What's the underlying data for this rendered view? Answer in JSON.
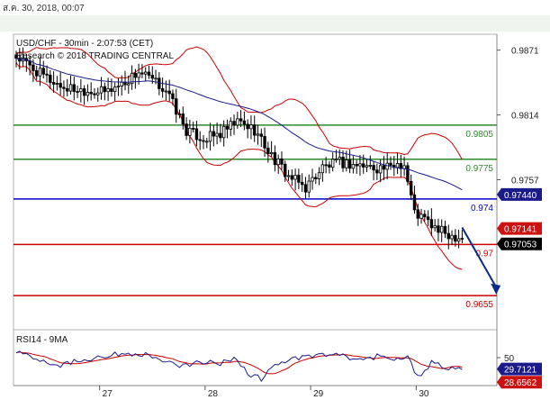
{
  "timestamp": "ส.ค. 30, 2018, 00:07",
  "chart_data": [
    {
      "type": "candlestick",
      "title": "USD/CHF - 30min - 2:07:53 (CET)",
      "subtitle": "Research © 2018 TRADING CENTRAL",
      "ylim": [
        0.9625,
        0.9885
      ],
      "y_ticks": [
        "0.9871",
        "0.9814",
        "0.9757"
      ],
      "x_ticks": [
        "27",
        "28",
        "29",
        "30"
      ],
      "levels": [
        {
          "label": "0.9805",
          "value": 0.9805,
          "color": "#2e8b2e"
        },
        {
          "label": "0.9775",
          "value": 0.9775,
          "color": "#2e8b2e"
        },
        {
          "label": "0.974",
          "value": 0.974,
          "color": "#0000cc"
        },
        {
          "label": "0.97",
          "value": 0.97,
          "color": "#cc0000"
        },
        {
          "label": "0.9655",
          "value": 0.9655,
          "color": "#cc0000"
        }
      ],
      "price_tags": [
        {
          "label": "0.97440",
          "value": 0.9744,
          "color": "#1a1a8a"
        },
        {
          "label": "0.97141",
          "value": 0.97141,
          "color": "#cc1111"
        },
        {
          "label": "0.97053",
          "value": 0.97053,
          "color": "#000000"
        }
      ],
      "close_anchors": [
        [
          0,
          0.9865
        ],
        [
          8,
          0.9848
        ],
        [
          14,
          0.9838
        ],
        [
          20,
          0.9836
        ],
        [
          26,
          0.9834
        ],
        [
          32,
          0.9843
        ],
        [
          36,
          0.9852
        ],
        [
          40,
          0.9844
        ],
        [
          44,
          0.9836
        ],
        [
          50,
          0.98
        ],
        [
          55,
          0.9793
        ],
        [
          60,
          0.9797
        ],
        [
          65,
          0.9808
        ],
        [
          70,
          0.9801
        ],
        [
          75,
          0.9778
        ],
        [
          80,
          0.976
        ],
        [
          85,
          0.975
        ],
        [
          90,
          0.9768
        ],
        [
          95,
          0.9772
        ],
        [
          100,
          0.977
        ],
        [
          105,
          0.9768
        ],
        [
          110,
          0.9767
        ],
        [
          112,
          0.9772
        ],
        [
          114,
          0.977
        ],
        [
          117,
          0.9728
        ],
        [
          120,
          0.9722
        ],
        [
          124,
          0.9712
        ],
        [
          128,
          0.9708
        ],
        [
          131,
          0.9707
        ]
      ],
      "projection": [
        [
          131,
          0.9715
        ],
        [
          141,
          0.9656
        ]
      ],
      "x_tick_positions": [
        24.5,
        55.5,
        86.5,
        117.5
      ]
    },
    {
      "type": "line",
      "title": "RSI14 - 9MA",
      "y_ticks": [
        "50"
      ],
      "ylim": [
        0,
        100
      ],
      "price_tags": [
        {
          "label": "29.7121",
          "value": 29.7121,
          "color": "#1a1a8a"
        },
        {
          "label": "28.6562",
          "value": 28.6562,
          "color": "#cc1111"
        }
      ],
      "rsi_anchors": [
        [
          0,
          62
        ],
        [
          6,
          50
        ],
        [
          12,
          36
        ],
        [
          18,
          44
        ],
        [
          24,
          52
        ],
        [
          30,
          56
        ],
        [
          36,
          58
        ],
        [
          42,
          48
        ],
        [
          48,
          32
        ],
        [
          54,
          44
        ],
        [
          60,
          38
        ],
        [
          64,
          52
        ],
        [
          68,
          22
        ],
        [
          72,
          12
        ],
        [
          76,
          38
        ],
        [
          82,
          48
        ],
        [
          88,
          54
        ],
        [
          94,
          55
        ],
        [
          100,
          46
        ],
        [
          106,
          52
        ],
        [
          112,
          48
        ],
        [
          115,
          56
        ],
        [
          117,
          22
        ],
        [
          119,
          14
        ],
        [
          122,
          42
        ],
        [
          126,
          32
        ],
        [
          131,
          29.7
        ]
      ]
    }
  ]
}
